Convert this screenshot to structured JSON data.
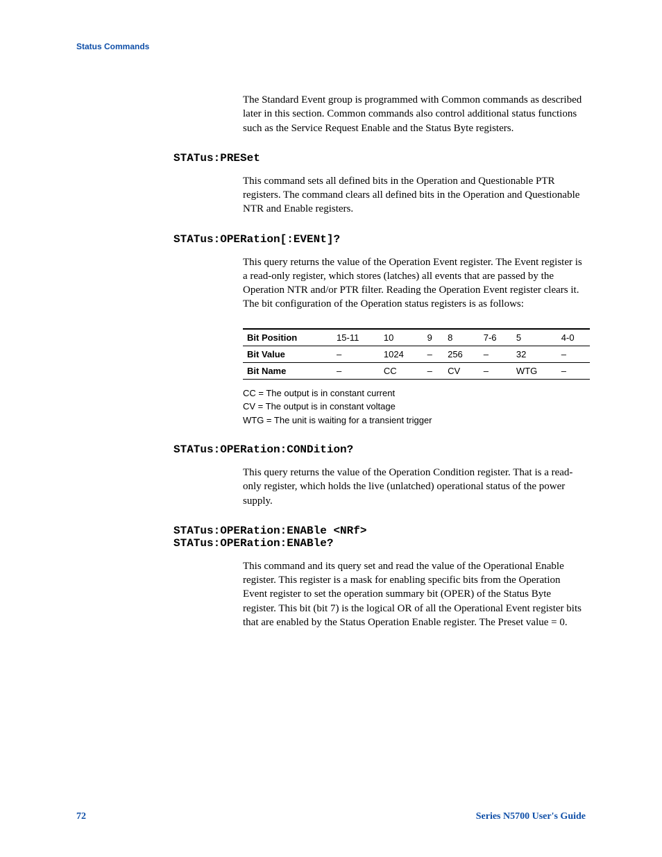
{
  "header": "Status Commands",
  "intro": "The Standard Event group is programmed with Common commands as described later in this section. Common commands also control additional status functions such as the Service Request Enable and the Status Byte registers.",
  "sections": {
    "preset": {
      "cmd": "STATus:PRESet",
      "body": "This command sets all defined bits in the Operation and Questionable PTR registers. The command clears all defined bits in the Operation and Questionable NTR and Enable registers."
    },
    "event": {
      "cmd": "STATus:OPERation[:EVENt]?",
      "body": "This query returns the value of the Operation Event register. The Event register is a read-only register, which stores (latches) all events that are passed by the Operation NTR and/or PTR filter. Reading the Operation Event register clears it. The bit configuration of the Operation status registers is as follows:"
    },
    "condition": {
      "cmd": "STATus:OPERation:CONDition?",
      "body": "This query returns the value of the Operation Condition register. That is a read-only register, which holds the live (unlatched) operational status of the power supply."
    },
    "enable": {
      "cmd": "STATus:OPERation:ENABle <NRf>\nSTATus:OPERation:ENABle?",
      "body": "This command and its query set and read the value of the Operational Enable register. This register is a mask for enabling specific bits from the Operation Event register to set the operation summary bit (OPER) of the Status Byte register. This bit (bit 7) is the logical OR of all the Operational Event register bits that are enabled by the Status Operation Enable register. The Preset value = 0."
    }
  },
  "table": {
    "columns": [
      "Bit Position",
      "15-11",
      "10",
      "9",
      "8",
      "7-6",
      "5",
      "4-0"
    ],
    "rows": [
      [
        "Bit Value",
        "–",
        "1024",
        "–",
        "256",
        "–",
        "32",
        "–"
      ],
      [
        "Bit Name",
        "–",
        "CC",
        "–",
        "CV",
        "–",
        "WTG",
        "–"
      ]
    ],
    "col_widths": [
      "90px",
      "55px",
      "55px",
      "50px",
      "50px",
      "50px",
      "55px",
      "45px"
    ],
    "font_family": "Arial, Helvetica, sans-serif",
    "font_size": 13,
    "border_color": "#000000"
  },
  "legend": {
    "cc": "CC  = The output is in constant current",
    "cv": "CV  = The output is in constant voltage",
    "wtg": "WTG  = The unit is waiting for a transient trigger"
  },
  "footer": {
    "page": "72",
    "title": "Series N5700 User's Guide"
  },
  "colors": {
    "link_blue": "#0f4fa8",
    "text": "#000000",
    "background": "#ffffff"
  },
  "typography": {
    "body_font": "Century Schoolbook, Georgia, serif",
    "body_size": 15,
    "mono_font": "Courier New, monospace",
    "mono_size": 16,
    "sans_font": "Arial, Helvetica, sans-serif",
    "header_size": 12,
    "footer_size": 14
  }
}
